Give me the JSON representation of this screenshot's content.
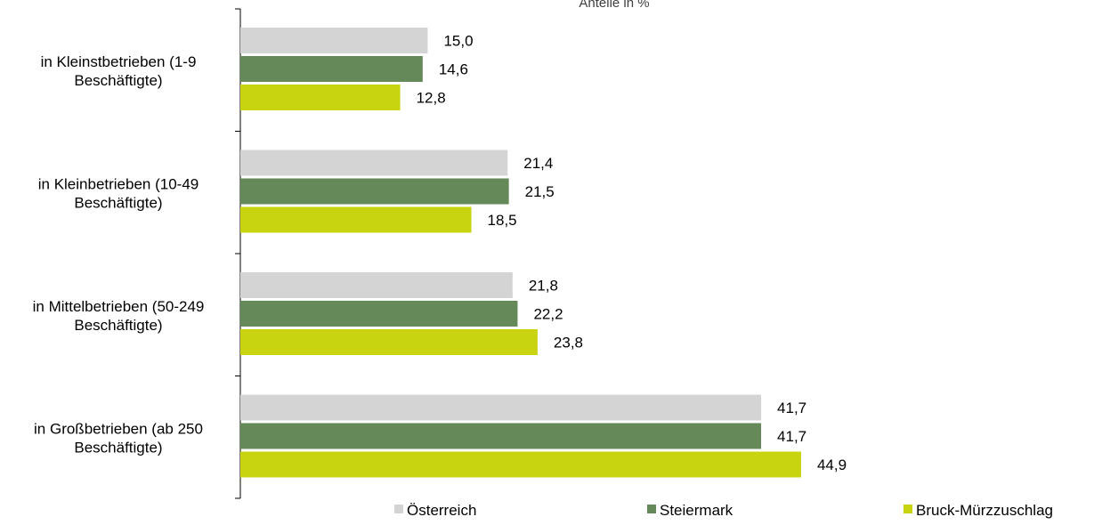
{
  "chart_data": {
    "type": "bar",
    "orientation": "horizontal",
    "title": "",
    "axis_title": "Anteile in %",
    "categories": [
      [
        "in Kleinstbetrieben (1-9",
        "Beschäftigte)"
      ],
      [
        "in Kleinbetrieben (10-49",
        "Beschäftigte)"
      ],
      [
        "in Mittelbetrieben (50-249",
        "Beschäftigte)"
      ],
      [
        "in Großbetrieben (ab 250",
        "Beschäftigte)"
      ]
    ],
    "series": [
      {
        "name": "Österreich",
        "color": "#d4d4d4",
        "values": [
          15.0,
          21.4,
          21.8,
          41.7
        ],
        "labels": [
          "15,0",
          "21,4",
          "21,8",
          "41,7"
        ]
      },
      {
        "name": "Steiermark",
        "color": "#66895a",
        "values": [
          14.6,
          21.5,
          22.2,
          41.7
        ],
        "labels": [
          "14,6",
          "21,5",
          "22,2",
          "41,7"
        ]
      },
      {
        "name": "Bruck-Mürzzuschlag",
        "color": "#c8d40f",
        "values": [
          12.8,
          18.5,
          23.8,
          44.9
        ],
        "labels": [
          "12,8",
          "18,5",
          "23,8",
          "44,9"
        ]
      }
    ],
    "xlim": [
      0,
      50
    ],
    "grid": false,
    "legend_position": "bottom"
  }
}
